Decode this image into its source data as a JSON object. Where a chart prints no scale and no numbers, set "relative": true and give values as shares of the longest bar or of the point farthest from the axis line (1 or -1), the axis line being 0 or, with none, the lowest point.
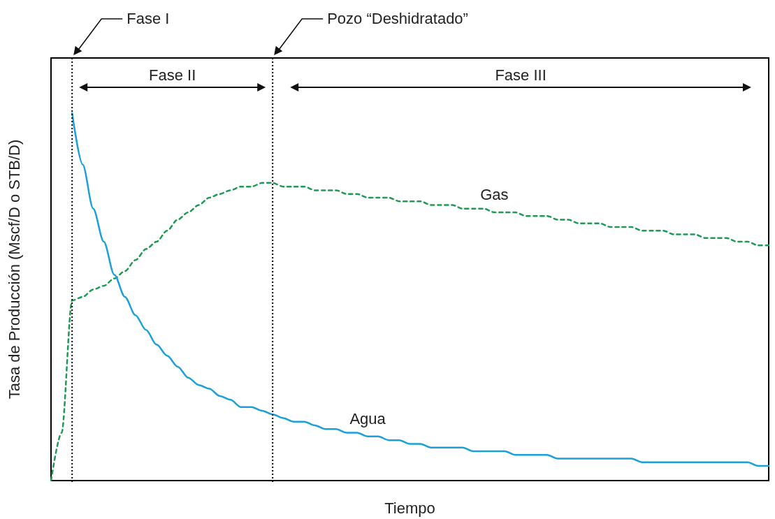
{
  "chart_data": {
    "type": "line",
    "relative": true,
    "xlabel": "Tiempo",
    "ylabel": "Tasa de Producción (Mscf/D o STB/D)",
    "grid": false,
    "marker": "none",
    "categories": [
      null,
      null,
      null,
      null,
      null,
      null,
      null,
      null,
      null,
      null,
      null,
      null,
      null,
      null,
      null,
      null,
      null,
      null,
      null,
      null,
      null,
      null,
      null,
      null,
      null,
      null,
      null,
      null,
      null,
      null,
      null,
      null,
      null,
      null,
      null,
      null,
      null,
      null,
      null,
      null,
      null,
      null,
      null,
      null,
      null,
      null,
      null,
      null,
      null,
      null,
      null,
      null,
      null,
      null,
      null,
      null,
      null,
      null,
      null,
      null,
      null,
      null,
      null,
      null,
      null,
      null,
      null,
      null,
      null
    ],
    "series": [
      {
        "name": "Gas",
        "color": "#1e9a55",
        "line_style": "dashed",
        "values": [
          0,
          0.13,
          0.49,
          0.5,
          0.52,
          0.53,
          0.55,
          0.57,
          0.6,
          0.63,
          0.65,
          0.68,
          0.71,
          0.73,
          0.75,
          0.77,
          0.78,
          0.79,
          0.8,
          0.8,
          0.81,
          0.81,
          0.8,
          0.8,
          0.8,
          0.79,
          0.79,
          0.79,
          0.78,
          0.78,
          0.77,
          0.77,
          0.77,
          0.76,
          0.76,
          0.76,
          0.75,
          0.75,
          0.75,
          0.74,
          0.74,
          0.74,
          0.73,
          0.73,
          0.73,
          0.72,
          0.72,
          0.72,
          0.71,
          0.71,
          0.7,
          0.7,
          0.7,
          0.69,
          0.69,
          0.69,
          0.68,
          0.68,
          0.68,
          0.67,
          0.67,
          0.67,
          0.66,
          0.66,
          0.66,
          0.65,
          0.65,
          0.64,
          0.64
        ]
      },
      {
        "name": "Agua",
        "color": "#1ba1d8",
        "line_style": "solid",
        "values": [
          null,
          null,
          1.0,
          0.86,
          0.74,
          0.65,
          0.56,
          0.5,
          0.45,
          0.41,
          0.37,
          0.34,
          0.31,
          0.28,
          0.26,
          0.25,
          0.23,
          0.22,
          0.2,
          0.2,
          0.19,
          0.18,
          0.17,
          0.16,
          0.16,
          0.15,
          0.14,
          0.14,
          0.13,
          0.13,
          0.12,
          0.12,
          0.11,
          0.11,
          0.1,
          0.1,
          0.09,
          0.09,
          0.09,
          0.09,
          0.08,
          0.08,
          0.08,
          0.08,
          0.07,
          0.07,
          0.07,
          0.07,
          0.06,
          0.06,
          0.06,
          0.06,
          0.06,
          0.06,
          0.06,
          0.06,
          0.05,
          0.05,
          0.05,
          0.05,
          0.05,
          0.05,
          0.05,
          0.05,
          0.05,
          0.05,
          0.05,
          0.04,
          0.04
        ]
      }
    ],
    "annotations": [
      "Fase I",
      "Pozo “Deshidratado”",
      "Fase II",
      "Fase III"
    ]
  }
}
